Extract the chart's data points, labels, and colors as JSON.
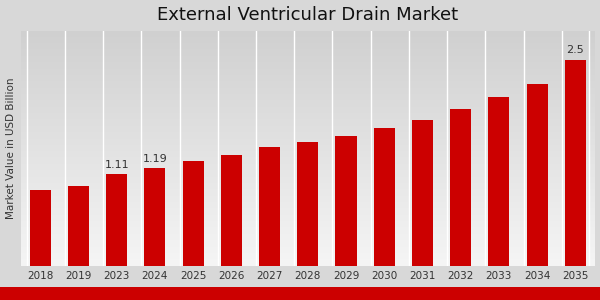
{
  "title": "External Ventricular Drain Market",
  "ylabel": "Market Value in USD Billion",
  "categories": [
    "2018",
    "2019",
    "2023",
    "2024",
    "2025",
    "2026",
    "2027",
    "2028",
    "2029",
    "2030",
    "2031",
    "2032",
    "2033",
    "2034",
    "2035"
  ],
  "values": [
    0.92,
    0.97,
    1.11,
    1.19,
    1.27,
    1.35,
    1.44,
    1.5,
    1.57,
    1.67,
    1.77,
    1.9,
    2.05,
    2.2,
    2.5
  ],
  "bar_color": "#cc0000",
  "annotations": {
    "2023": "1.11",
    "2024": "1.19",
    "2035": "2.5"
  },
  "bg_top_color": "#d0d0d0",
  "bg_bottom_color": "#f5f5f5",
  "ylim": [
    0,
    2.85
  ],
  "title_fontsize": 13,
  "label_fontsize": 7.5,
  "tick_fontsize": 7.5,
  "annotation_fontsize": 8,
  "bottom_strip_color": "#cc0000",
  "grid_color": "#ffffff",
  "bar_width": 0.55
}
